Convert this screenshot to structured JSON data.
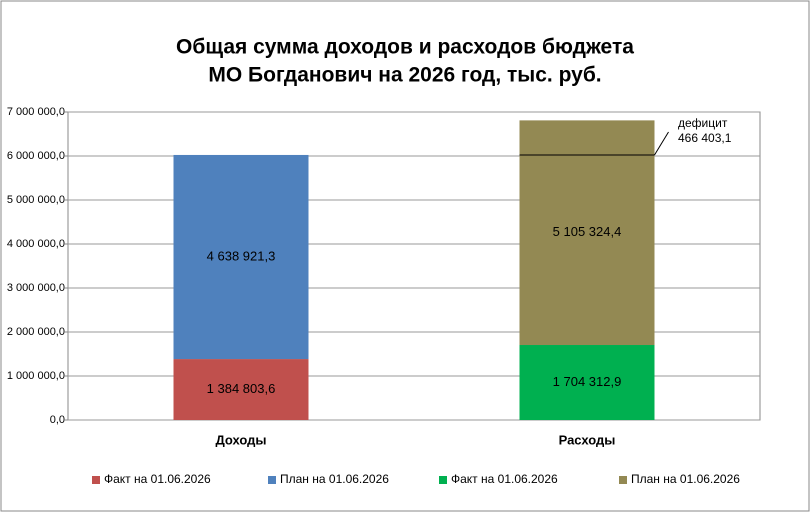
{
  "chart_data": {
    "type": "stacked_bar",
    "title": [
      "Общая сумма доходов и расходов бюджета",
      "МО Богданович на 2026 год, тыс. руб."
    ],
    "categories": [
      "Доходы",
      "Расходы"
    ],
    "series": [
      {
        "name": "Факт на 01.06.2026",
        "color": "#c0504d",
        "values": [
          1384803.6,
          null
        ],
        "value_labels": [
          "1 384 803,6",
          null
        ]
      },
      {
        "name": "План на 01.06.2026",
        "color": "#4f81bd",
        "values": [
          4638921.3,
          null
        ],
        "value_labels": [
          "4 638 921,3",
          null
        ]
      },
      {
        "name": "Факт на 01.06.2026",
        "color": "#00b050",
        "values": [
          null,
          1704312.9
        ],
        "value_labels": [
          null,
          "1 704 312,9"
        ]
      },
      {
        "name": "План на 01.06.2026",
        "color": "#938953",
        "values": [
          null,
          5105324.4
        ],
        "value_labels": [
          null,
          "5 105 324,4"
        ]
      }
    ],
    "annotations": [
      "дефицит",
      "466 403,1"
    ],
    "ylim": [
      0,
      7000000
    ],
    "yticks": [
      {
        "value": 0,
        "label": "0,0"
      },
      {
        "value": 1000000,
        "label": "1 000 000,0"
      },
      {
        "value": 2000000,
        "label": "2 000 000,0"
      },
      {
        "value": 3000000,
        "label": "3 000 000,0"
      },
      {
        "value": 4000000,
        "label": "4 000 000,0"
      },
      {
        "value": 5000000,
        "label": "5 000 000,0"
      },
      {
        "value": 6000000,
        "label": "6 000 000,0"
      },
      {
        "value": 7000000,
        "label": "7 000 000,0"
      }
    ],
    "grid": true
  }
}
